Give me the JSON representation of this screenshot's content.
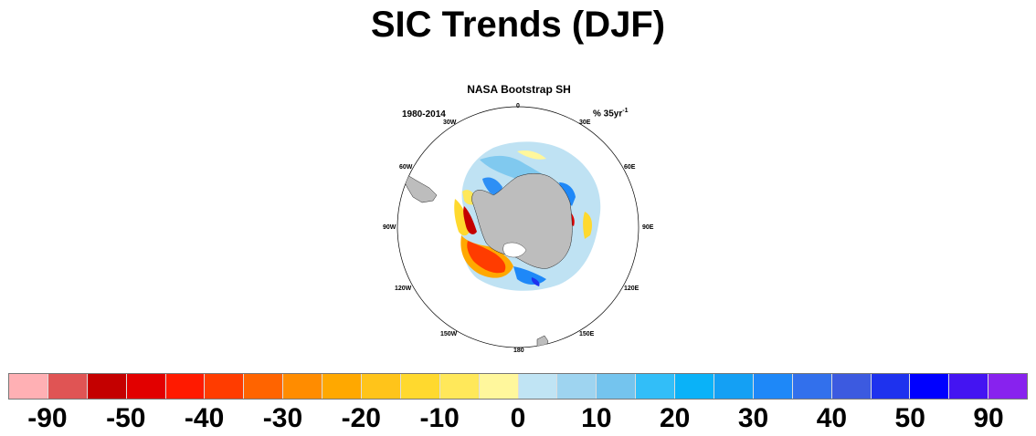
{
  "title": "SIC Trends (DJF)",
  "map": {
    "title": "NASA Bootstrap SH",
    "period": "1980-2014",
    "units": "% 35yr",
    "units_exp": "-1",
    "longitude_labels": {
      "lon_0": "0",
      "lon_30e": "30E",
      "lon_60e": "60E",
      "lon_90e": "90E",
      "lon_120e": "120E",
      "lon_150e": "150E",
      "lon_180": "180",
      "lon_150w": "150W",
      "lon_120w": "120W",
      "lon_90w": "90W",
      "lon_60w": "60W",
      "lon_30w": "30W"
    }
  },
  "colorbar": {
    "colors": [
      "#ffb0b4",
      "#e05454",
      "#c40000",
      "#e20000",
      "#ff1a00",
      "#ff3c00",
      "#ff6400",
      "#ff8c00",
      "#ffa800",
      "#ffc41a",
      "#ffd92e",
      "#ffe85a",
      "#fff79c",
      "#c0e4f4",
      "#9ed4f0",
      "#74c4ee",
      "#32bef8",
      "#0ab2f8",
      "#14a0f4",
      "#1e88f8",
      "#3270ec",
      "#3c5ae0",
      "#1e32ee",
      "#0000ff",
      "#4414f2",
      "#8822ee"
    ],
    "tick_labels": [
      "-90",
      "-50",
      "-40",
      "-30",
      "-20",
      "-10",
      "0",
      "10",
      "20",
      "30",
      "40",
      "50",
      "90"
    ]
  }
}
